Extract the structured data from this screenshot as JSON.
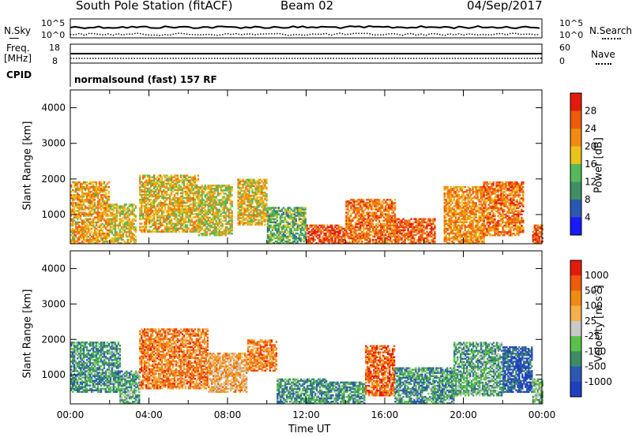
{
  "header": {
    "station": "South Pole Station (fitACF)",
    "beam": "Beam 02",
    "date": "04/Sep/2017"
  },
  "top_panels": {
    "nsky_label": "N.Sky",
    "nsky_ticks": [
      "10^5",
      "10^0"
    ],
    "nsearch_label": "N.Search",
    "nsearch_ticks": [
      "10^5",
      "10^0"
    ],
    "freq_label_1": "Freq.",
    "freq_label_2": "[MHz]",
    "freq_ticks": [
      "18",
      "8"
    ],
    "nave_label": "Nave",
    "nave_ticks": [
      "60",
      "0"
    ],
    "cpid_label": "CPID",
    "cpid_value": "normalsound (fast) 157 RF"
  },
  "chart_data": [
    {
      "type": "heatmap",
      "name": "power",
      "xlabel": "",
      "ylabel": "Slant Range [km]",
      "y_ticks": [
        "1000",
        "2000",
        "3000",
        "4000"
      ],
      "ylim": [
        180,
        4500
      ],
      "xlim": [
        0,
        24
      ],
      "colorbar_label": "Power [dB]",
      "colorbar_ticks": [
        "4",
        "8",
        "12",
        "16",
        "20",
        "24",
        "28"
      ],
      "colorscale": [
        "#1a1aff",
        "#2b58b4",
        "#3f8f66",
        "#56b85a",
        "#e9c21c",
        "#f08a12",
        "#ef5a0c",
        "#e41b0c"
      ],
      "regions": [
        {
          "t0": 0.0,
          "t1": 2.0,
          "r0": 180,
          "r1": 1900,
          "level": 0.65
        },
        {
          "t0": 2.0,
          "t1": 3.3,
          "r0": 180,
          "r1": 1300,
          "level": 0.55
        },
        {
          "t0": 3.5,
          "t1": 6.5,
          "r0": 500,
          "r1": 2100,
          "level": 0.6
        },
        {
          "t0": 6.5,
          "t1": 8.2,
          "r0": 400,
          "r1": 1800,
          "level": 0.55
        },
        {
          "t0": 8.5,
          "t1": 10.0,
          "r0": 700,
          "r1": 2000,
          "level": 0.6
        },
        {
          "t0": 10.0,
          "t1": 12.0,
          "r0": 180,
          "r1": 1200,
          "level": 0.4
        },
        {
          "t0": 12.0,
          "t1": 14.0,
          "r0": 180,
          "r1": 700,
          "level": 0.85
        },
        {
          "t0": 14.0,
          "t1": 16.5,
          "r0": 180,
          "r1": 1400,
          "level": 0.75
        },
        {
          "t0": 16.5,
          "t1": 18.5,
          "r0": 180,
          "r1": 900,
          "level": 0.8
        },
        {
          "t0": 19.0,
          "t1": 21.0,
          "r0": 180,
          "r1": 1800,
          "level": 0.7
        },
        {
          "t0": 21.0,
          "t1": 23.0,
          "r0": 400,
          "r1": 1900,
          "level": 0.75
        },
        {
          "t0": 23.5,
          "t1": 24.0,
          "r0": 180,
          "r1": 700,
          "level": 0.8
        }
      ]
    },
    {
      "type": "heatmap",
      "name": "velocity",
      "xlabel": "Time UT",
      "ylabel": "Slant Range [km]",
      "x_ticks": [
        "00:00",
        "04:00",
        "08:00",
        "12:00",
        "16:00",
        "20:00",
        "00:00"
      ],
      "y_ticks": [
        "1000",
        "2000",
        "3000",
        "4000"
      ],
      "ylim": [
        180,
        4500
      ],
      "xlim": [
        0,
        24
      ],
      "colorbar_label": "Velocity [m s",
      "colorbar_unit_exp": "-1",
      "colorbar_unit_close": "]",
      "colorbar_ticks": [
        "1000",
        "500",
        "100",
        "25",
        "-25",
        "-100",
        "-500",
        "-1000"
      ],
      "colorscale": [
        "#1f3fbf",
        "#2b58b4",
        "#3d8c68",
        "#5ac24a",
        "#c8c8c8",
        "#f5b04a",
        "#f08a12",
        "#ef5a0c",
        "#e41b0c"
      ],
      "regions": [
        {
          "t0": 0.0,
          "t1": 2.5,
          "r0": 500,
          "r1": 1900,
          "level": 0.3
        },
        {
          "t0": 2.5,
          "t1": 3.5,
          "r0": 180,
          "r1": 1100,
          "level": 0.35
        },
        {
          "t0": 3.5,
          "t1": 7.0,
          "r0": 600,
          "r1": 2300,
          "level": 0.75
        },
        {
          "t0": 7.0,
          "t1": 9.0,
          "r0": 500,
          "r1": 1600,
          "level": 0.65
        },
        {
          "t0": 9.0,
          "t1": 10.5,
          "r0": 1100,
          "r1": 2000,
          "level": 0.75
        },
        {
          "t0": 10.5,
          "t1": 13.0,
          "r0": 180,
          "r1": 900,
          "level": 0.3
        },
        {
          "t0": 13.0,
          "t1": 15.0,
          "r0": 180,
          "r1": 800,
          "level": 0.3
        },
        {
          "t0": 15.0,
          "t1": 16.5,
          "r0": 400,
          "r1": 1800,
          "level": 0.8
        },
        {
          "t0": 16.5,
          "t1": 19.5,
          "r0": 180,
          "r1": 1200,
          "level": 0.3
        },
        {
          "t0": 19.5,
          "t1": 22.0,
          "r0": 400,
          "r1": 1900,
          "level": 0.35
        },
        {
          "t0": 22.0,
          "t1": 23.5,
          "r0": 500,
          "r1": 1800,
          "level": 0.15
        },
        {
          "t0": 23.5,
          "t1": 24.0,
          "r0": 180,
          "r1": 900,
          "level": 0.4
        }
      ]
    }
  ]
}
